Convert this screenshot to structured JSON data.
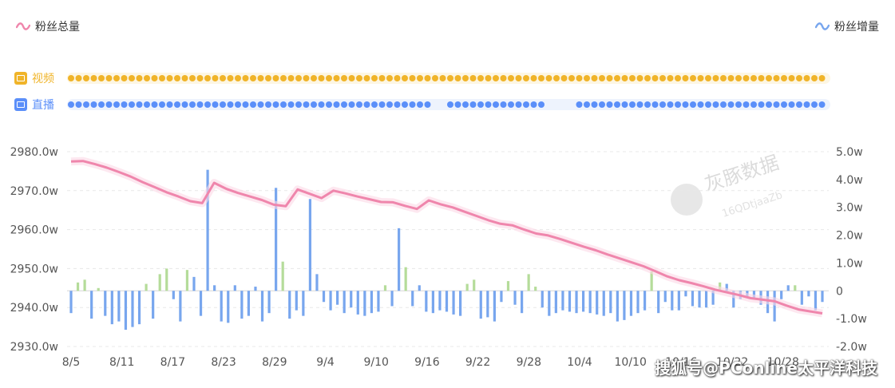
{
  "legend": {
    "total_label": "粉丝总量",
    "increment_label": "粉丝增量",
    "total_icon": "wave-icon",
    "increment_icon": "wave-icon"
  },
  "tracks": {
    "video": {
      "label": "视频",
      "color": "#f0b429",
      "icon": "video-icon"
    },
    "live": {
      "label": "直播",
      "color": "#5b8ff9",
      "icon": "live-icon"
    }
  },
  "watermark": {
    "text": "搜狐号@PConline太平洋科技",
    "logo_text": "灰豚数据",
    "logo_sub": "16QDtjaaZb"
  },
  "colors": {
    "line": "#ef86ac",
    "bar_blue": "#78a6ee",
    "bar_green": "#b5dc9a",
    "grid": "#e8e8e8"
  },
  "chart_data": {
    "type": "line+bar",
    "x_ticks": [
      "8/5",
      "8/11",
      "8/17",
      "8/23",
      "8/29",
      "9/4",
      "9/10",
      "9/16",
      "9/22",
      "9/28",
      "10/4",
      "10/10",
      "10/16",
      "10/22",
      "10/28"
    ],
    "y_left_ticks": [
      "2980.0w",
      "2970.0w",
      "2960.0w",
      "2950.0w",
      "2940.0w",
      "2930.0w"
    ],
    "y_left_range": [
      2930,
      2980
    ],
    "y_right_ticks": [
      "5.0w",
      "4.0w",
      "3.0w",
      "2.0w",
      "1.0w",
      "0",
      "-1.0w",
      "-2.0w"
    ],
    "y_right_range": [
      -2,
      5
    ],
    "series": [
      {
        "name": "粉丝总量",
        "axis": "left",
        "kind": "line",
        "values": [
          2977.5,
          2977.6,
          2976.8,
          2975.9,
          2974.8,
          2973.6,
          2972.2,
          2970.9,
          2969.6,
          2968.5,
          2967.3,
          2966.8,
          2972.0,
          2970.5,
          2969.4,
          2968.5,
          2967.6,
          2966.4,
          2966.0,
          2970.3,
          2969.2,
          2968.1,
          2970.0,
          2969.3,
          2968.5,
          2967.8,
          2967.1,
          2967.0,
          2966.1,
          2965.3,
          2967.5,
          2966.5,
          2965.7,
          2964.6,
          2963.5,
          2962.4,
          2961.5,
          2961.1,
          2960.0,
          2959.0,
          2958.5,
          2957.6,
          2956.6,
          2955.6,
          2954.7,
          2953.6,
          2952.6,
          2951.6,
          2950.6,
          2949.3,
          2948.0,
          2947.0,
          2946.3,
          2945.5,
          2944.6,
          2943.9,
          2943.2,
          2942.4,
          2942.0,
          2941.6,
          2940.5,
          2939.5,
          2939.0,
          2938.5
        ]
      },
      {
        "name": "粉丝增量",
        "axis": "right",
        "kind": "bar",
        "values": [
          -0.8,
          0.3,
          0.4,
          -1.0,
          0.1,
          -0.9,
          -1.2,
          -1.1,
          -1.4,
          -1.3,
          -1.2,
          0.25,
          -1.0,
          0.6,
          0.8,
          -0.3,
          -1.1,
          0.75,
          0.5,
          -0.9,
          4.35,
          0.2,
          -1.1,
          -1.15,
          0.2,
          -1.0,
          -0.9,
          0.15,
          -1.1,
          -0.8,
          3.7,
          1.05,
          -1.0,
          -0.7,
          -0.9,
          3.3,
          0.6,
          -0.4,
          -0.7,
          -0.5,
          -0.8,
          -0.6,
          -0.85,
          -0.9,
          -0.8,
          -0.75,
          0.2,
          -0.55,
          2.25,
          0.85,
          -0.55,
          0.2,
          -0.75,
          -0.8,
          -0.7,
          -0.75,
          -0.85,
          -0.9,
          0.25,
          0.4,
          -1.0,
          -0.95,
          -1.1,
          -0.4,
          0.35,
          -0.5,
          -0.8,
          0.6,
          0.15,
          -0.6,
          -0.9,
          -0.8,
          -0.7,
          -0.75,
          -0.8,
          -0.75,
          -0.8,
          -0.85,
          -0.9,
          -0.8,
          -1.1,
          -1.05,
          -0.9,
          -0.8,
          -0.7,
          0.7,
          -0.8,
          -0.4,
          -0.7,
          -0.7,
          -0.2,
          -0.55,
          -0.6,
          -0.6,
          -0.5,
          0.3,
          0.25,
          -0.6,
          -0.3,
          -0.2,
          -0.25,
          -0.5,
          -0.8,
          -1.1,
          -0.3,
          0.2,
          0.2,
          -0.5,
          -0.2,
          -0.7,
          -0.4
        ],
        "positive_big": "#78a6ee"
      }
    ],
    "grid": true
  }
}
